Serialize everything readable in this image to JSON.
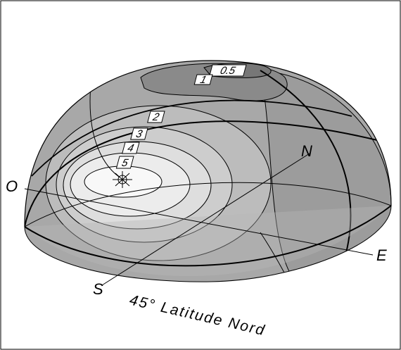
{
  "contours": [
    {
      "label": "0.5"
    },
    {
      "label": "1"
    },
    {
      "label": "2"
    },
    {
      "label": "3"
    },
    {
      "label": "4"
    },
    {
      "label": "5"
    }
  ],
  "directions": {
    "west": "O",
    "north": "N",
    "east": "E",
    "south": "S"
  },
  "caption": "45° Latitude Nord"
}
